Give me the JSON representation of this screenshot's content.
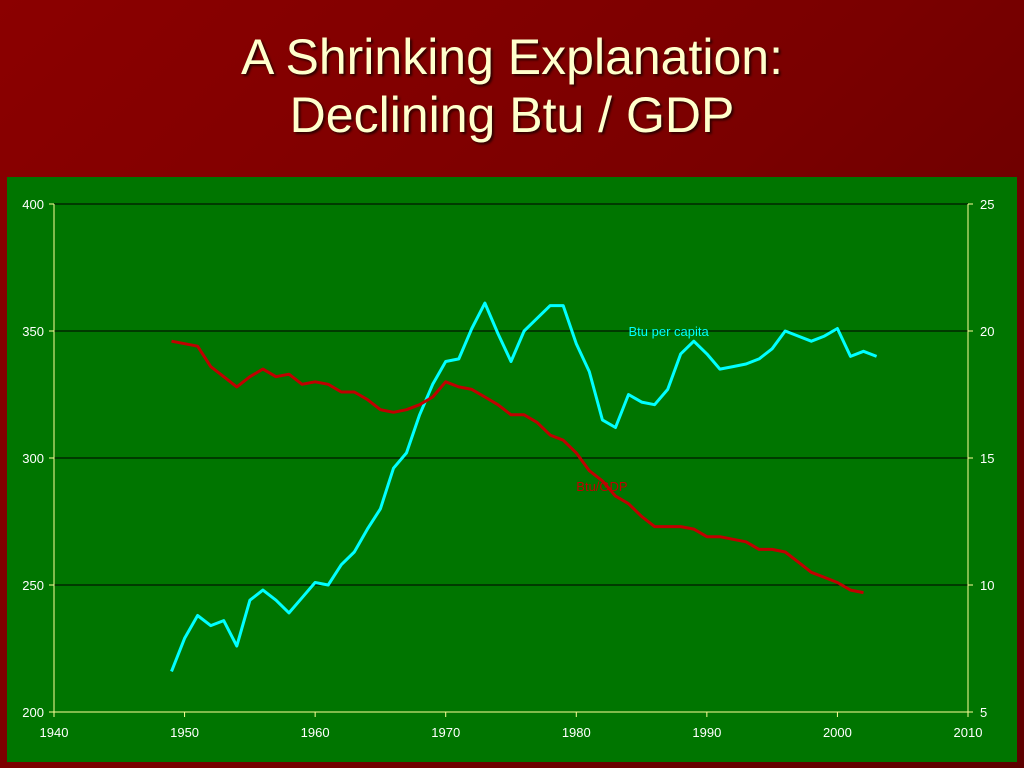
{
  "title": {
    "line1": "A Shrinking Explanation:",
    "line2": "Declining Btu / GDP"
  },
  "colors": {
    "background": "#8b0000",
    "plot_background": "#007500",
    "title_text": "#ffffcc",
    "btu_per_capita": "#00ffff",
    "btu_gdp": "#c00000",
    "axis": "#ffff99"
  },
  "chart_data": {
    "type": "line",
    "title": "",
    "xlabel": "",
    "ylabel": "",
    "xlim": [
      1940,
      2010
    ],
    "x_ticks": [
      1940,
      1950,
      1960,
      1970,
      1980,
      1990,
      2000,
      2010
    ],
    "ylim_left": [
      200,
      400
    ],
    "y_ticks_left": [
      200,
      250,
      300,
      350,
      400
    ],
    "ylim_right": [
      5,
      25
    ],
    "y_ticks_right": [
      5,
      10,
      15,
      20,
      25
    ],
    "grid": "horizontal",
    "series": [
      {
        "name": "Btu per capita",
        "axis": "right",
        "color": "#00ffff",
        "x": [
          1949,
          1950,
          1951,
          1952,
          1953,
          1954,
          1955,
          1956,
          1957,
          1958,
          1959,
          1960,
          1961,
          1962,
          1963,
          1964,
          1965,
          1966,
          1967,
          1968,
          1969,
          1970,
          1971,
          1972,
          1973,
          1974,
          1975,
          1976,
          1977,
          1978,
          1979,
          1980,
          1981,
          1982,
          1983,
          1984,
          1985,
          1986,
          1987,
          1988,
          1989,
          1990,
          1991,
          1992,
          1993,
          1994,
          1995,
          1996,
          1997,
          1998,
          1999,
          2000,
          2001,
          2002,
          2003
        ],
        "values": [
          6.6,
          7.9,
          8.8,
          8.4,
          8.6,
          7.6,
          9.4,
          9.8,
          9.4,
          8.9,
          9.5,
          10.1,
          10.0,
          10.8,
          11.3,
          12.2,
          13.0,
          14.6,
          15.2,
          16.7,
          17.9,
          18.8,
          18.9,
          20.1,
          21.1,
          19.9,
          18.8,
          20.0,
          20.5,
          21.0,
          21.0,
          19.5,
          18.4,
          16.5,
          16.2,
          17.5,
          17.2,
          17.1,
          17.7,
          19.1,
          19.6,
          19.1,
          18.5,
          18.6,
          18.7,
          18.9,
          19.3,
          20.0,
          19.8,
          19.6,
          19.8,
          20.1,
          19.0,
          19.2,
          19.0
        ]
      },
      {
        "name": "Btu/GDP",
        "axis": "left",
        "color": "#c00000",
        "x": [
          1949,
          1950,
          1951,
          1952,
          1953,
          1954,
          1955,
          1956,
          1957,
          1958,
          1959,
          1960,
          1961,
          1962,
          1963,
          1964,
          1965,
          1966,
          1967,
          1968,
          1969,
          1970,
          1971,
          1972,
          1973,
          1974,
          1975,
          1976,
          1977,
          1978,
          1979,
          1980,
          1981,
          1982,
          1983,
          1984,
          1985,
          1986,
          1987,
          1988,
          1989,
          1990,
          1991,
          1992,
          1993,
          1994,
          1995,
          1996,
          1997,
          1998,
          1999,
          2000,
          2001,
          2002
        ],
        "values": [
          346,
          345,
          344,
          336,
          332,
          328,
          332,
          335,
          332,
          333,
          329,
          330,
          329,
          326,
          326,
          323,
          319,
          318,
          319,
          321,
          324,
          330,
          328,
          327,
          324,
          321,
          317,
          317,
          314,
          309,
          307,
          302,
          295,
          291,
          285,
          282,
          277,
          273,
          273,
          273,
          272,
          269,
          269,
          268,
          267,
          264,
          264,
          263,
          259,
          255,
          253,
          251,
          248,
          247
        ]
      }
    ],
    "annotations": [
      {
        "text": "Btu per capita",
        "series": 0,
        "x": 1984,
        "y": 19.8
      },
      {
        "text": "Btu/GDP",
        "series": 1,
        "x": 1980,
        "y": 287
      }
    ]
  }
}
